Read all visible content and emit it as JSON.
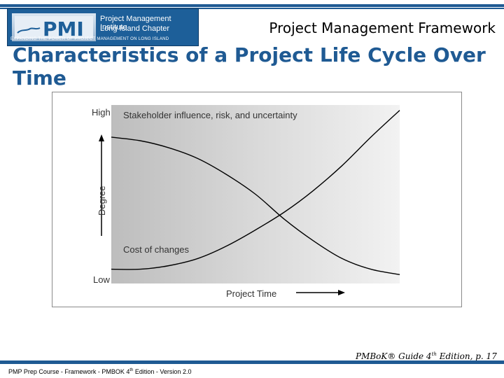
{
  "header": {
    "logo": {
      "org_line1": "Project Management Institute",
      "org_line2": "Long Island Chapter",
      "tagline": "Expanding the Power of Project Management on Long Island"
    },
    "section_title": "Project Management Framework"
  },
  "slide": {
    "title": "Characteristics of a Project Life Cycle Over Time"
  },
  "chart_data": {
    "type": "line",
    "xlabel": "Project Time",
    "ylabel": "Degree",
    "y_tick_labels": [
      "High",
      "Low"
    ],
    "x": [
      0,
      0.1,
      0.2,
      0.3,
      0.4,
      0.5,
      0.6,
      0.7,
      0.8,
      0.9,
      1.0
    ],
    "ylim": [
      0,
      1
    ],
    "xlim": [
      0,
      1
    ],
    "series": [
      {
        "name": "Stakeholder influence, risk, and uncertainty",
        "values": [
          0.82,
          0.8,
          0.76,
          0.7,
          0.61,
          0.5,
          0.36,
          0.24,
          0.14,
          0.08,
          0.05
        ],
        "color": "#000000"
      },
      {
        "name": "Cost of changes",
        "values": [
          0.08,
          0.08,
          0.1,
          0.14,
          0.21,
          0.3,
          0.4,
          0.52,
          0.66,
          0.82,
          0.97
        ],
        "color": "#000000"
      }
    ],
    "background": "gradient-gray",
    "grid": false
  },
  "citation": {
    "text": "PMBoK® Guide 4",
    "sup": "th",
    "rest": " Edition, p. 17"
  },
  "footer": {
    "pre": "PMP Prep Course - Framework - PMBOK 4",
    "sup": "th",
    "post": " Edition - Version 2.0"
  },
  "colors": {
    "brand_blue": "#1f5a93",
    "title_blue": "#1f5a93"
  }
}
